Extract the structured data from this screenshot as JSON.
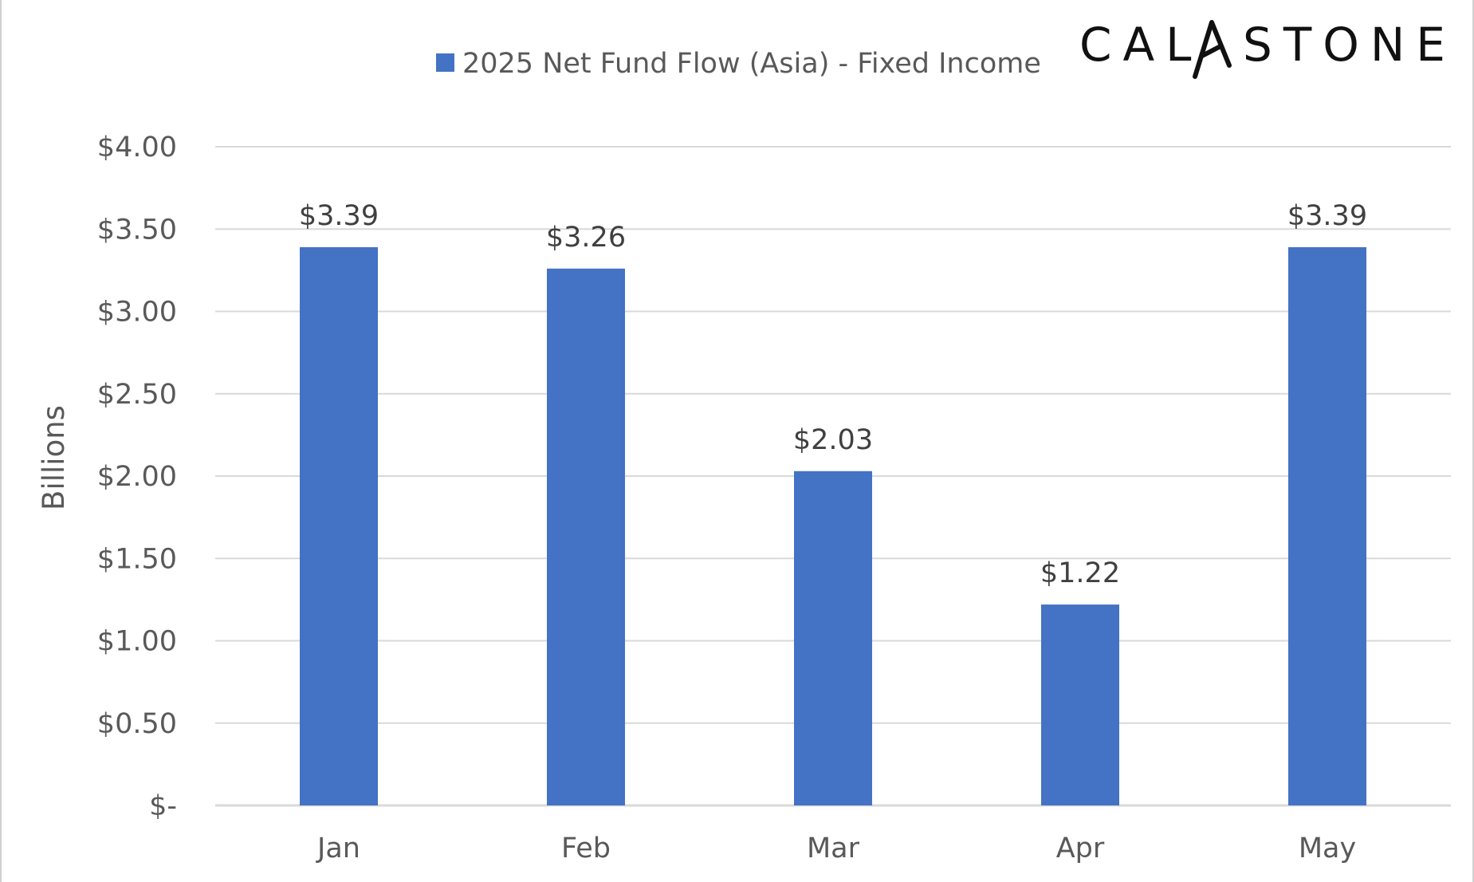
{
  "logo": {
    "text": "CALASTONE",
    "text_left": "CAL",
    "text_right": "STONE"
  },
  "chart_data": {
    "type": "bar",
    "categories": [
      "Jan",
      "Feb",
      "Mar",
      "Apr",
      "May"
    ],
    "series": [
      {
        "name": "2025 Net Fund Flow (Asia) - Fixed Income",
        "values": [
          3.39,
          3.26,
          2.03,
          1.22,
          3.39
        ],
        "color": "#4472C4"
      }
    ],
    "data_labels": [
      "$3.39",
      "$3.26",
      "$2.03",
      "$1.22",
      "$3.39"
    ],
    "ylabel": "Billions",
    "ylim": [
      0,
      4
    ],
    "yticks": [
      0,
      0.5,
      1.0,
      1.5,
      2.0,
      2.5,
      3.0,
      3.5,
      4.0
    ],
    "ytick_labels": [
      "$-",
      "$0.50",
      "$1.00",
      "$1.50",
      "$2.00",
      "$2.50",
      "$3.00",
      "$3.50",
      "$4.00"
    ],
    "grid": true,
    "legend_position": "top",
    "gridline_color": "#d9d9d9"
  }
}
